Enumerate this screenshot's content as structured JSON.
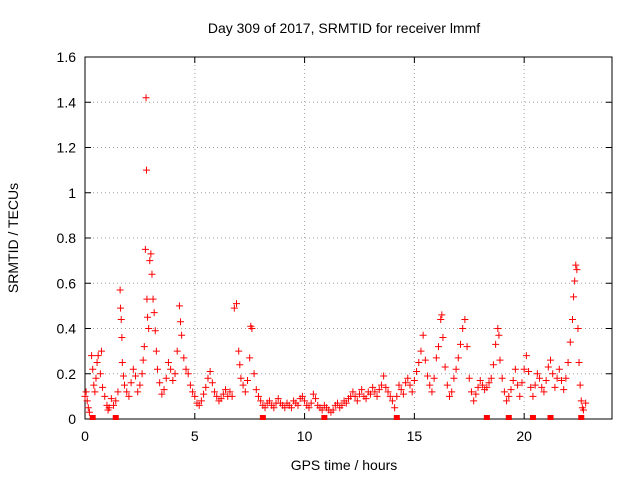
{
  "chart_data": {
    "type": "scatter",
    "title": "Day 309 of 2017, SRMTID for receiver lmmf",
    "xlabel": "GPS time / hours",
    "ylabel": "SRMTID / TECUs",
    "xlim": [
      0,
      24
    ],
    "ylim": [
      0,
      1.6
    ],
    "xticks": [
      0,
      5,
      10,
      15,
      20
    ],
    "xtick_labels": [
      "0",
      "5",
      "10",
      "15",
      "20"
    ],
    "yticks": [
      0,
      0.2,
      0.4,
      0.6,
      0.8,
      1,
      1.2,
      1.4,
      1.6
    ],
    "ytick_labels": [
      "0",
      "0.2",
      "0.4",
      "0.6",
      "0.8",
      "1",
      "1.2",
      "1.4",
      "1.6"
    ],
    "grid": true,
    "marker": "+",
    "color": "#ff0000",
    "series": [
      {
        "name": "SRMTID",
        "points": [
          [
            0.0,
            0.1
          ],
          [
            0.05,
            0.12
          ],
          [
            0.1,
            0.08
          ],
          [
            0.15,
            0.05
          ],
          [
            0.2,
            0.03
          ],
          [
            0.3,
            0.28
          ],
          [
            0.35,
            0.22
          ],
          [
            0.4,
            0.15
          ],
          [
            0.45,
            0.12
          ],
          [
            0.5,
            0.18
          ],
          [
            0.55,
            0.25
          ],
          [
            0.6,
            0.28
          ],
          [
            0.7,
            0.2
          ],
          [
            0.75,
            0.3
          ],
          [
            0.8,
            0.14
          ],
          [
            0.9,
            0.1
          ],
          [
            1.0,
            0.06
          ],
          [
            1.05,
            0.04
          ],
          [
            1.1,
            0.05
          ],
          [
            1.2,
            0.09
          ],
          [
            1.3,
            0.06
          ],
          [
            1.4,
            0.08
          ],
          [
            1.5,
            0.12
          ],
          [
            1.6,
            0.57
          ],
          [
            1.62,
            0.49
          ],
          [
            1.65,
            0.44
          ],
          [
            1.68,
            0.36
          ],
          [
            1.7,
            0.25
          ],
          [
            1.75,
            0.19
          ],
          [
            1.8,
            0.15
          ],
          [
            1.9,
            0.12
          ],
          [
            2.0,
            0.1
          ],
          [
            2.1,
            0.16
          ],
          [
            2.2,
            0.22
          ],
          [
            2.3,
            0.19
          ],
          [
            2.4,
            0.12
          ],
          [
            2.5,
            0.15
          ],
          [
            2.6,
            0.2
          ],
          [
            2.65,
            0.26
          ],
          [
            2.7,
            0.32
          ],
          [
            2.75,
            0.75
          ],
          [
            2.78,
            1.42
          ],
          [
            2.8,
            1.1
          ],
          [
            2.82,
            0.53
          ],
          [
            2.85,
            0.45
          ],
          [
            2.9,
            0.4
          ],
          [
            2.95,
            0.7
          ],
          [
            3.0,
            0.73
          ],
          [
            3.05,
            0.64
          ],
          [
            3.1,
            0.53
          ],
          [
            3.15,
            0.47
          ],
          [
            3.2,
            0.39
          ],
          [
            3.25,
            0.3
          ],
          [
            3.3,
            0.22
          ],
          [
            3.4,
            0.16
          ],
          [
            3.5,
            0.11
          ],
          [
            3.6,
            0.13
          ],
          [
            3.7,
            0.18
          ],
          [
            3.8,
            0.25
          ],
          [
            3.9,
            0.22
          ],
          [
            4.0,
            0.17
          ],
          [
            4.1,
            0.2
          ],
          [
            4.2,
            0.3
          ],
          [
            4.3,
            0.5
          ],
          [
            4.35,
            0.43
          ],
          [
            4.4,
            0.37
          ],
          [
            4.5,
            0.27
          ],
          [
            4.6,
            0.22
          ],
          [
            4.7,
            0.2
          ],
          [
            4.8,
            0.15
          ],
          [
            4.9,
            0.12
          ],
          [
            5.0,
            0.1
          ],
          [
            5.1,
            0.07
          ],
          [
            5.2,
            0.06
          ],
          [
            5.3,
            0.08
          ],
          [
            5.4,
            0.11
          ],
          [
            5.5,
            0.14
          ],
          [
            5.6,
            0.18
          ],
          [
            5.7,
            0.21
          ],
          [
            5.8,
            0.16
          ],
          [
            5.9,
            0.12
          ],
          [
            6.0,
            0.1
          ],
          [
            6.1,
            0.08
          ],
          [
            6.2,
            0.09
          ],
          [
            6.3,
            0.11
          ],
          [
            6.4,
            0.13
          ],
          [
            6.5,
            0.1
          ],
          [
            6.6,
            0.12
          ],
          [
            6.7,
            0.1
          ],
          [
            6.8,
            0.49
          ],
          [
            6.9,
            0.51
          ],
          [
            7.0,
            0.3
          ],
          [
            7.05,
            0.24
          ],
          [
            7.1,
            0.18
          ],
          [
            7.2,
            0.15
          ],
          [
            7.3,
            0.12
          ],
          [
            7.4,
            0.17
          ],
          [
            7.5,
            0.27
          ],
          [
            7.55,
            0.41
          ],
          [
            7.6,
            0.4
          ],
          [
            7.7,
            0.2
          ],
          [
            7.8,
            0.13
          ],
          [
            7.9,
            0.1
          ],
          [
            8.0,
            0.08
          ],
          [
            8.1,
            0.06
          ],
          [
            8.2,
            0.05
          ],
          [
            8.3,
            0.07
          ],
          [
            8.4,
            0.08
          ],
          [
            8.5,
            0.06
          ],
          [
            8.6,
            0.05
          ],
          [
            8.7,
            0.07
          ],
          [
            8.8,
            0.09
          ],
          [
            8.9,
            0.07
          ],
          [
            9.0,
            0.06
          ],
          [
            9.1,
            0.05
          ],
          [
            9.2,
            0.07
          ],
          [
            9.3,
            0.06
          ],
          [
            9.4,
            0.05
          ],
          [
            9.5,
            0.08
          ],
          [
            9.6,
            0.07
          ],
          [
            9.7,
            0.06
          ],
          [
            9.8,
            0.09
          ],
          [
            9.9,
            0.1
          ],
          [
            10.0,
            0.08
          ],
          [
            10.1,
            0.06
          ],
          [
            10.2,
            0.05
          ],
          [
            10.3,
            0.07
          ],
          [
            10.4,
            0.11
          ],
          [
            10.5,
            0.09
          ],
          [
            10.6,
            0.06
          ],
          [
            10.7,
            0.05
          ],
          [
            10.8,
            0.04
          ],
          [
            10.9,
            0.06
          ],
          [
            11.0,
            0.05
          ],
          [
            11.1,
            0.04
          ],
          [
            11.2,
            0.03
          ],
          [
            11.3,
            0.04
          ],
          [
            11.4,
            0.06
          ],
          [
            11.5,
            0.07
          ],
          [
            11.6,
            0.05
          ],
          [
            11.7,
            0.06
          ],
          [
            11.8,
            0.08
          ],
          [
            11.9,
            0.07
          ],
          [
            12.0,
            0.09
          ],
          [
            12.1,
            0.1
          ],
          [
            12.2,
            0.12
          ],
          [
            12.3,
            0.1
          ],
          [
            12.4,
            0.08
          ],
          [
            12.5,
            0.11
          ],
          [
            12.6,
            0.13
          ],
          [
            12.7,
            0.1
          ],
          [
            12.8,
            0.09
          ],
          [
            12.9,
            0.12
          ],
          [
            13.0,
            0.11
          ],
          [
            13.1,
            0.14
          ],
          [
            13.2,
            0.12
          ],
          [
            13.3,
            0.1
          ],
          [
            13.4,
            0.13
          ],
          [
            13.5,
            0.15
          ],
          [
            13.6,
            0.19
          ],
          [
            13.7,
            0.14
          ],
          [
            13.8,
            0.12
          ],
          [
            13.9,
            0.1
          ],
          [
            14.0,
            0.08
          ],
          [
            14.1,
            0.05
          ],
          [
            14.2,
            0.1
          ],
          [
            14.3,
            0.15
          ],
          [
            14.4,
            0.13
          ],
          [
            14.5,
            0.11
          ],
          [
            14.6,
            0.16
          ],
          [
            14.7,
            0.18
          ],
          [
            14.8,
            0.15
          ],
          [
            14.9,
            0.12
          ],
          [
            15.0,
            0.17
          ],
          [
            15.1,
            0.21
          ],
          [
            15.2,
            0.25
          ],
          [
            15.3,
            0.3
          ],
          [
            15.4,
            0.37
          ],
          [
            15.5,
            0.26
          ],
          [
            15.6,
            0.19
          ],
          [
            15.7,
            0.15
          ],
          [
            15.8,
            0.12
          ],
          [
            15.9,
            0.18
          ],
          [
            16.0,
            0.27
          ],
          [
            16.1,
            0.32
          ],
          [
            16.2,
            0.44
          ],
          [
            16.25,
            0.46
          ],
          [
            16.3,
            0.36
          ],
          [
            16.4,
            0.23
          ],
          [
            16.5,
            0.15
          ],
          [
            16.6,
            0.1
          ],
          [
            16.7,
            0.12
          ],
          [
            16.8,
            0.18
          ],
          [
            16.9,
            0.22
          ],
          [
            17.0,
            0.27
          ],
          [
            17.1,
            0.33
          ],
          [
            17.2,
            0.4
          ],
          [
            17.3,
            0.44
          ],
          [
            17.4,
            0.32
          ],
          [
            17.5,
            0.18
          ],
          [
            17.6,
            0.12
          ],
          [
            17.7,
            0.08
          ],
          [
            17.8,
            0.11
          ],
          [
            17.9,
            0.14
          ],
          [
            18.0,
            0.17
          ],
          [
            18.1,
            0.15
          ],
          [
            18.2,
            0.13
          ],
          [
            18.3,
            0.14
          ],
          [
            18.4,
            0.16
          ],
          [
            18.5,
            0.18
          ],
          [
            18.6,
            0.24
          ],
          [
            18.7,
            0.33
          ],
          [
            18.8,
            0.4
          ],
          [
            18.85,
            0.37
          ],
          [
            18.9,
            0.26
          ],
          [
            19.0,
            0.18
          ],
          [
            19.1,
            0.12
          ],
          [
            19.2,
            0.08
          ],
          [
            19.3,
            0.1
          ],
          [
            19.4,
            0.13
          ],
          [
            19.5,
            0.17
          ],
          [
            19.6,
            0.22
          ],
          [
            19.7,
            0.15
          ],
          [
            19.8,
            0.1
          ],
          [
            19.9,
            0.16
          ],
          [
            20.0,
            0.22
          ],
          [
            20.1,
            0.28
          ],
          [
            20.2,
            0.21
          ],
          [
            20.3,
            0.14
          ],
          [
            20.4,
            0.1
          ],
          [
            20.5,
            0.15
          ],
          [
            20.6,
            0.2
          ],
          [
            20.7,
            0.18
          ],
          [
            20.8,
            0.14
          ],
          [
            20.9,
            0.12
          ],
          [
            21.0,
            0.17
          ],
          [
            21.1,
            0.23
          ],
          [
            21.2,
            0.26
          ],
          [
            21.3,
            0.2
          ],
          [
            21.4,
            0.14
          ],
          [
            21.5,
            0.18
          ],
          [
            21.6,
            0.22
          ],
          [
            21.7,
            0.17
          ],
          [
            21.8,
            0.13
          ],
          [
            21.9,
            0.18
          ],
          [
            22.0,
            0.25
          ],
          [
            22.1,
            0.34
          ],
          [
            22.2,
            0.44
          ],
          [
            22.25,
            0.54
          ],
          [
            22.3,
            0.61
          ],
          [
            22.35,
            0.68
          ],
          [
            22.4,
            0.66
          ],
          [
            22.45,
            0.4
          ],
          [
            22.5,
            0.25
          ],
          [
            22.55,
            0.15
          ],
          [
            22.6,
            0.08
          ],
          [
            22.65,
            0.05
          ],
          [
            22.7,
            0.04
          ],
          [
            22.8,
            0.07
          ]
        ]
      }
    ],
    "baseline_markers_x": [
      0.35,
      1.4,
      8.1,
      10.9,
      14.2,
      18.3,
      19.3,
      20.4,
      21.2,
      22.6
    ]
  }
}
